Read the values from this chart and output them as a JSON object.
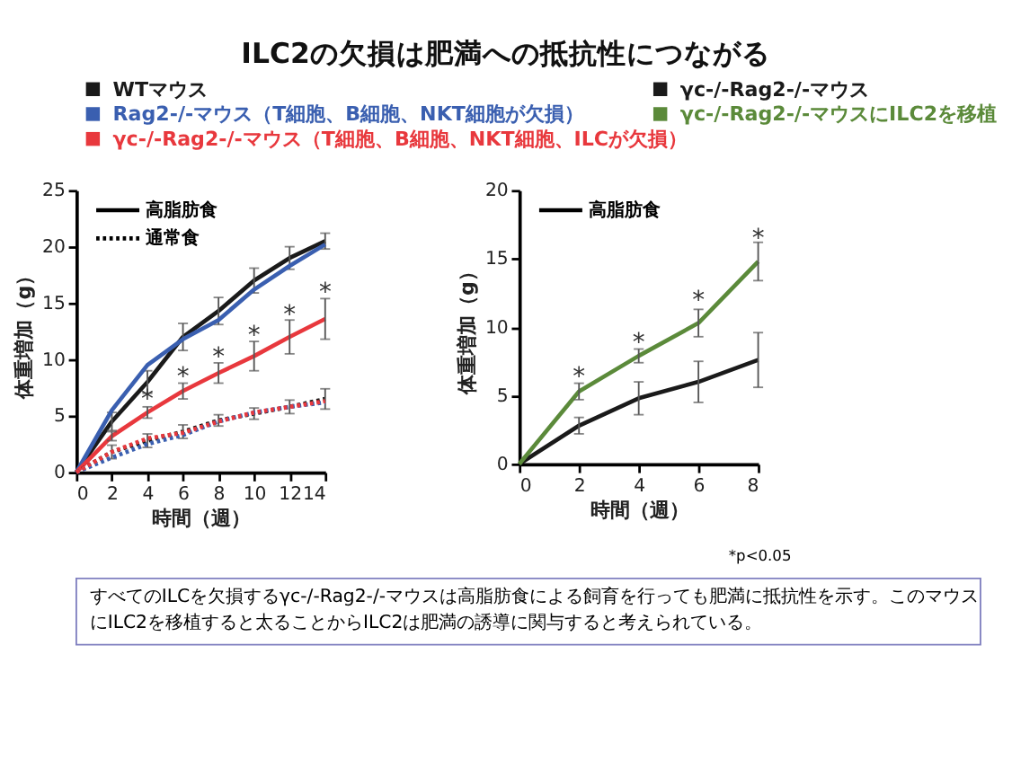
{
  "chart_data": [
    {
      "type": "line",
      "title": "ILC2の欠損は肥満への抵抗性につながる",
      "xlabel": "時間（週）",
      "ylabel": "体重増加（g）",
      "x": [
        0,
        2,
        4,
        6,
        8,
        10,
        12,
        14
      ],
      "xlim": [
        0,
        14
      ],
      "xticks": [
        0,
        2,
        4,
        6,
        8,
        10,
        12,
        14
      ],
      "ylim": [
        0,
        25
      ],
      "yticks": [
        0,
        5,
        10,
        15,
        20,
        25
      ],
      "grid": false,
      "legend": "top",
      "marker": "none",
      "series": [
        {
          "name": "WTマウス",
          "color": "#1a1a1a",
          "line_style": "solid",
          "values": [
            0,
            4.5,
            8,
            12,
            14.3,
            17,
            19,
            20.5
          ],
          "errors": [
            null,
            0.8,
            1.0,
            1.2,
            1.2,
            1.1,
            1.0,
            0.7
          ]
        },
        {
          "name": "Rag2-/-マウス（T細胞、B細胞、NKT細胞が欠損）",
          "color": "#3a5fb0",
          "line_style": "solid",
          "values": [
            0,
            5.5,
            9.5,
            11.8,
            13.5,
            16.2,
            18.3,
            20.2
          ]
        },
        {
          "name": "γc-/-Rag2-/-マウス（T細胞、B細胞、NKT細胞、ILCが欠損）",
          "color": "#e8383d",
          "line_style": "solid",
          "values": [
            0,
            3.2,
            5.3,
            7.2,
            8.8,
            10.3,
            12,
            13.6
          ],
          "errors": [
            null,
            0.4,
            0.5,
            0.7,
            0.9,
            1.3,
            1.5,
            1.8
          ]
        },
        {
          "color": "#1a1a1a",
          "line_style": "dotted",
          "values": [
            0,
            1.8,
            2.8,
            3.6,
            4.6,
            5.2,
            5.8,
            6.5
          ],
          "errors": [
            null,
            0.6,
            0.6,
            0.6,
            0.5,
            0.5,
            0.6,
            0.9
          ]
        },
        {
          "color": "#3a5fb0",
          "line_style": "dotted",
          "values": [
            0,
            1.3,
            2.5,
            3.3,
            4.5,
            5.3,
            5.8,
            6.2
          ]
        },
        {
          "color": "#e8383d",
          "line_style": "dotted",
          "values": [
            0,
            1.8,
            3.0,
            3.5,
            4.5,
            5.3,
            5.8,
            6.3
          ]
        }
      ],
      "annotations": [
        "高脂肪食",
        "通常食",
        {
          "text": "*",
          "x": 4,
          "y": 6.5
        },
        {
          "text": "*",
          "x": 6,
          "y": 8.5
        },
        {
          "text": "*",
          "x": 8,
          "y": 10.3
        },
        {
          "text": "*",
          "x": 10,
          "y": 12.2
        },
        {
          "text": "*",
          "x": 12,
          "y": 14
        },
        {
          "text": "*",
          "x": 14,
          "y": 16
        }
      ]
    },
    {
      "type": "line",
      "xlabel": "時間（週）",
      "ylabel": "体重増加（g）",
      "x": [
        0,
        2,
        4,
        6,
        8
      ],
      "xlim": [
        0,
        8
      ],
      "xticks": [
        0,
        2,
        4,
        6,
        8
      ],
      "ylim": [
        0,
        20
      ],
      "yticks": [
        0,
        5,
        10,
        15,
        20
      ],
      "grid": false,
      "legend": "top",
      "marker": "none",
      "series": [
        {
          "name": "γc-/-Rag2-/-マウス",
          "color": "#1a1a1a",
          "line_style": "solid",
          "values": [
            0,
            2.8,
            4.8,
            6.0,
            7.6
          ],
          "errors": [
            null,
            0.6,
            1.2,
            1.5,
            2.0
          ]
        },
        {
          "name": "γc-/-Rag2-/-マウスにILC2を移植",
          "color": "#5b8a3a",
          "line_style": "solid",
          "values": [
            0,
            5.3,
            7.9,
            10.3,
            14.8
          ],
          "errors": [
            null,
            0.6,
            0.5,
            1.0,
            1.4
          ]
        }
      ],
      "annotations": [
        "高脂肪食",
        "*p<0.05",
        "すべてのILCを欠損するγc-/-Rag2-/-マウスは高脂肪食による飼育を行っても肥満に抵抗性を示す。このマウスにILC2を移植すると太ることからILC2は肥満の誘導に関与すると考えられている。",
        {
          "text": "*",
          "x": 2,
          "y": 6.4
        },
        {
          "text": "*",
          "x": 4,
          "y": 8.9
        },
        {
          "text": "*",
          "x": 6,
          "y": 12.0
        },
        {
          "text": "*",
          "x": 8,
          "y": 16.5
        }
      ]
    }
  ]
}
